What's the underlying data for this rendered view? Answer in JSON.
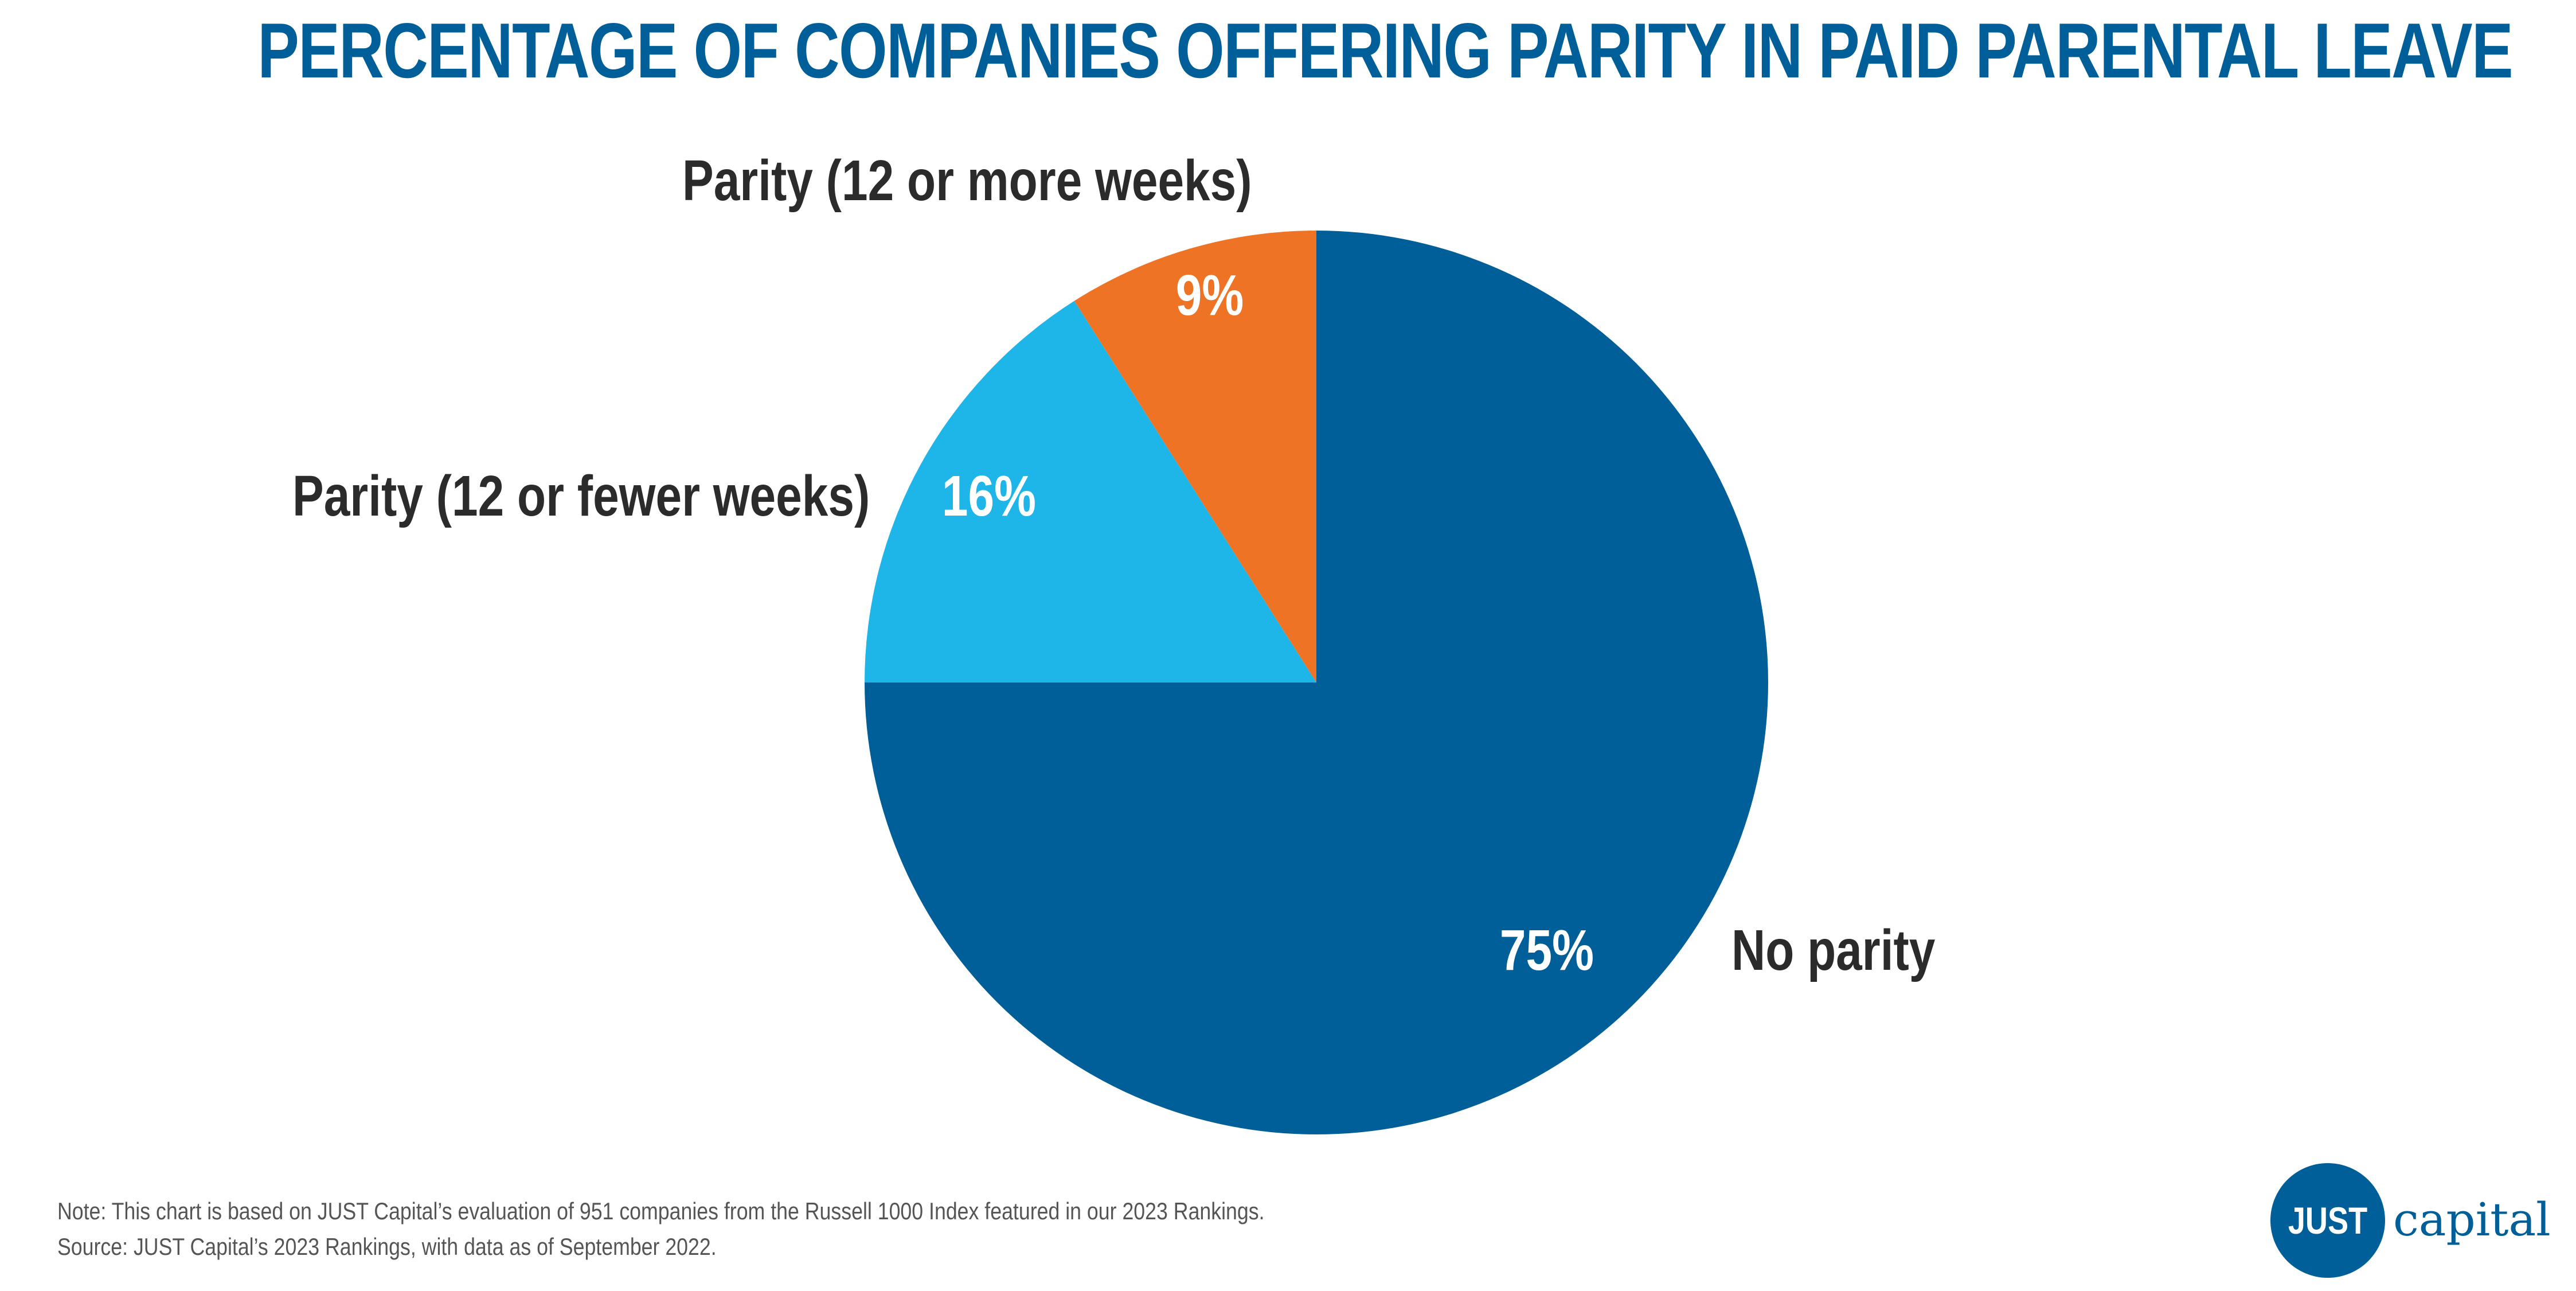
{
  "title": "PERCENTAGE OF COMPANIES OFFERING PARITY IN PAID PARENTAL LEAVE",
  "chart_data": {
    "type": "pie",
    "title": "PERCENTAGE OF COMPANIES OFFERING PARITY IN PAID PARENTAL LEAVE",
    "slices": [
      {
        "label": "No parity",
        "value": 75,
        "value_label": "75%",
        "color": "#005e99"
      },
      {
        "label": "Parity (12 or fewer weeks)",
        "value": 16,
        "value_label": "16%",
        "color": "#1eb6e9"
      },
      {
        "label": "Parity (12 or more weeks)",
        "value": 9,
        "value_label": "9%",
        "color": "#ee7325"
      }
    ],
    "start": "12 o'clock",
    "direction": "clockwise"
  },
  "footer": {
    "note": "Note: This chart is based on JUST Capital’s evaluation of 951 companies from the Russell 1000 Index featured in our 2023 Rankings.",
    "source": "Source: JUST Capital’s 2023 Rankings, with data as of September 2022."
  },
  "logo": {
    "just": "JUST",
    "capital": "capital",
    "color": "#005e99"
  }
}
